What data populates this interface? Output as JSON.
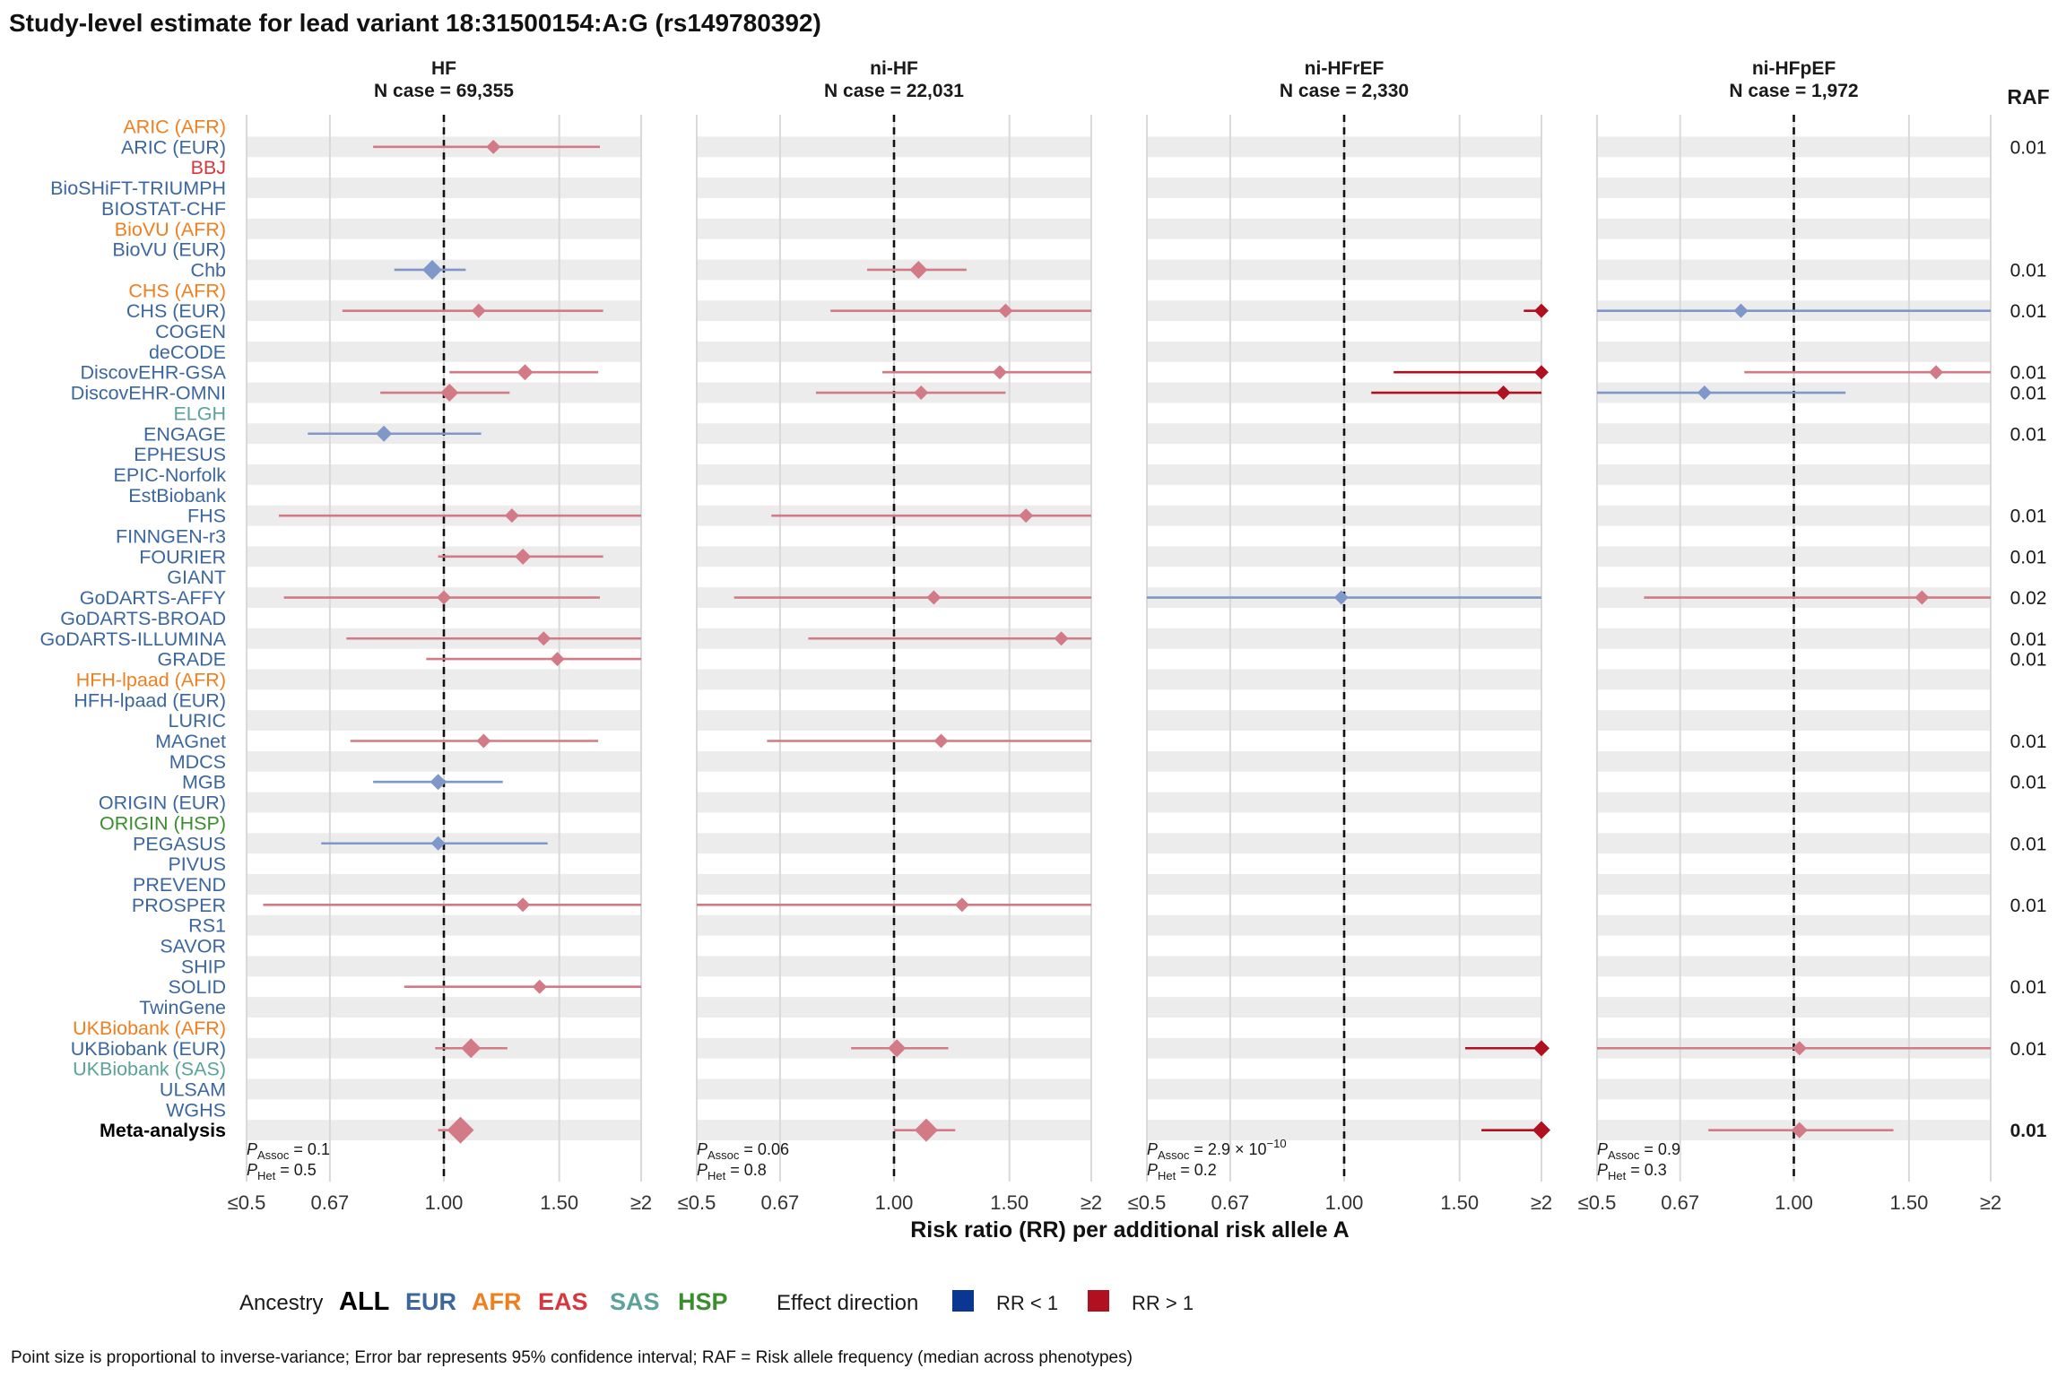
{
  "chart_data": {
    "type": "forest",
    "title": "Study-level estimate for lead variant 18:31500154:A:G (rs149780392)",
    "xlabel": "Risk ratio (RR) per additional risk allele A",
    "x_scale": "log",
    "x_ticks": [
      "≤0.5",
      "0.67",
      "1.00",
      "1.50",
      "≥2"
    ],
    "x_tick_values": [
      0.5,
      0.67,
      1.0,
      1.5,
      2.0
    ],
    "reference_line": 1.0,
    "raf_header": "RAF",
    "studies": [
      {
        "name": "ARIC (AFR)",
        "ancestry": "AFR"
      },
      {
        "name": "ARIC (EUR)",
        "ancestry": "EUR",
        "raf": "0.01"
      },
      {
        "name": "BBJ",
        "ancestry": "EAS"
      },
      {
        "name": "BioSHiFT-TRIUMPH",
        "ancestry": "EUR"
      },
      {
        "name": "BIOSTAT-CHF",
        "ancestry": "EUR"
      },
      {
        "name": "BioVU (AFR)",
        "ancestry": "AFR"
      },
      {
        "name": "BioVU (EUR)",
        "ancestry": "EUR"
      },
      {
        "name": "Chb",
        "ancestry": "EUR",
        "raf": "0.01"
      },
      {
        "name": "CHS (AFR)",
        "ancestry": "AFR"
      },
      {
        "name": "CHS (EUR)",
        "ancestry": "EUR",
        "raf": "0.01"
      },
      {
        "name": "COGEN",
        "ancestry": "EUR"
      },
      {
        "name": "deCODE",
        "ancestry": "EUR"
      },
      {
        "name": "DiscovEHR-GSA",
        "ancestry": "EUR",
        "raf": "0.01"
      },
      {
        "name": "DiscovEHR-OMNI",
        "ancestry": "EUR",
        "raf": "0.01"
      },
      {
        "name": "ELGH",
        "ancestry": "SAS"
      },
      {
        "name": "ENGAGE",
        "ancestry": "EUR",
        "raf": "0.01"
      },
      {
        "name": "EPHESUS",
        "ancestry": "EUR"
      },
      {
        "name": "EPIC-Norfolk",
        "ancestry": "EUR"
      },
      {
        "name": "EstBiobank",
        "ancestry": "EUR"
      },
      {
        "name": "FHS",
        "ancestry": "EUR",
        "raf": "0.01"
      },
      {
        "name": "FINNGEN-r3",
        "ancestry": "EUR"
      },
      {
        "name": "FOURIER",
        "ancestry": "EUR",
        "raf": "0.01"
      },
      {
        "name": "GIANT",
        "ancestry": "EUR"
      },
      {
        "name": "GoDARTS-AFFY",
        "ancestry": "EUR",
        "raf": "0.02"
      },
      {
        "name": "GoDARTS-BROAD",
        "ancestry": "EUR"
      },
      {
        "name": "GoDARTS-ILLUMINA",
        "ancestry": "EUR",
        "raf": "0.01"
      },
      {
        "name": "GRADE",
        "ancestry": "EUR",
        "raf": "0.01"
      },
      {
        "name": "HFH-lpaad (AFR)",
        "ancestry": "AFR"
      },
      {
        "name": "HFH-lpaad (EUR)",
        "ancestry": "EUR"
      },
      {
        "name": "LURIC",
        "ancestry": "EUR"
      },
      {
        "name": "MAGnet",
        "ancestry": "EUR",
        "raf": "0.01"
      },
      {
        "name": "MDCS",
        "ancestry": "EUR"
      },
      {
        "name": "MGB",
        "ancestry": "EUR",
        "raf": "0.01"
      },
      {
        "name": "ORIGIN (EUR)",
        "ancestry": "EUR"
      },
      {
        "name": "ORIGIN (HSP)",
        "ancestry": "HSP"
      },
      {
        "name": "PEGASUS",
        "ancestry": "EUR",
        "raf": "0.01"
      },
      {
        "name": "PIVUS",
        "ancestry": "EUR"
      },
      {
        "name": "PREVEND",
        "ancestry": "EUR"
      },
      {
        "name": "PROSPER",
        "ancestry": "EUR",
        "raf": "0.01"
      },
      {
        "name": "RS1",
        "ancestry": "EUR"
      },
      {
        "name": "SAVOR",
        "ancestry": "EUR"
      },
      {
        "name": "SHIP",
        "ancestry": "EUR"
      },
      {
        "name": "SOLID",
        "ancestry": "EUR",
        "raf": "0.01"
      },
      {
        "name": "TwinGene",
        "ancestry": "EUR"
      },
      {
        "name": "UKBiobank (AFR)",
        "ancestry": "AFR"
      },
      {
        "name": "UKBiobank (EUR)",
        "ancestry": "EUR",
        "raf": "0.01"
      },
      {
        "name": "UKBiobank (SAS)",
        "ancestry": "SAS"
      },
      {
        "name": "ULSAM",
        "ancestry": "EUR"
      },
      {
        "name": "WGHS",
        "ancestry": "EUR"
      },
      {
        "name": "Meta-analysis",
        "ancestry": "ALL",
        "raf": "0.01",
        "bold": true
      }
    ],
    "panels": [
      {
        "title": "HF",
        "n_case": "N case = 69,355",
        "p_assoc": "0.1",
        "p_het": "0.5",
        "estimates": [
          {
            "study": "ARIC (EUR)",
            "rr": 1.19,
            "lo": 0.78,
            "hi": 1.73,
            "size": 8
          },
          {
            "study": "Chb",
            "rr": 0.96,
            "lo": 0.84,
            "hi": 1.08,
            "size": 11
          },
          {
            "study": "CHS (EUR)",
            "rr": 1.13,
            "lo": 0.7,
            "hi": 1.75,
            "size": 8
          },
          {
            "study": "DiscovEHR-GSA",
            "rr": 1.33,
            "lo": 1.02,
            "hi": 1.72,
            "size": 9
          },
          {
            "study": "DiscovEHR-OMNI",
            "rr": 1.02,
            "lo": 0.8,
            "hi": 1.26,
            "size": 10
          },
          {
            "study": "ENGAGE",
            "rr": 0.81,
            "lo": 0.62,
            "hi": 1.14,
            "size": 9
          },
          {
            "study": "FHS",
            "rr": 1.27,
            "lo": 0.56,
            "hi": 2.0,
            "hi_clip": true,
            "size": 8
          },
          {
            "study": "FOURIER",
            "rr": 1.32,
            "lo": 0.98,
            "hi": 1.75,
            "size": 9
          },
          {
            "study": "GoDARTS-AFFY",
            "rr": 1.0,
            "lo": 0.57,
            "hi": 1.73,
            "size": 8
          },
          {
            "study": "GoDARTS-ILLUMINA",
            "rr": 1.42,
            "lo": 0.71,
            "hi": 2.0,
            "hi_clip": true,
            "size": 8
          },
          {
            "study": "GRADE",
            "rr": 1.49,
            "lo": 0.94,
            "hi": 2.0,
            "hi_clip": true,
            "size": 8
          },
          {
            "study": "MAGnet",
            "rr": 1.15,
            "lo": 0.72,
            "hi": 1.72,
            "size": 8
          },
          {
            "study": "MGB",
            "rr": 0.98,
            "lo": 0.78,
            "hi": 1.23,
            "size": 9
          },
          {
            "study": "PEGASUS",
            "rr": 0.98,
            "lo": 0.65,
            "hi": 1.44,
            "size": 8
          },
          {
            "study": "PROSPER",
            "rr": 1.32,
            "lo": 0.53,
            "hi": 2.0,
            "hi_clip": true,
            "size": 8
          },
          {
            "study": "SOLID",
            "rr": 1.4,
            "lo": 0.87,
            "hi": 2.0,
            "hi_clip": true,
            "size": 8
          },
          {
            "study": "UKBiobank (EUR)",
            "rr": 1.1,
            "lo": 0.97,
            "hi": 1.25,
            "size": 11
          },
          {
            "study": "Meta-analysis",
            "rr": 1.06,
            "lo": 0.98,
            "hi": 1.1,
            "size": 15
          }
        ]
      },
      {
        "title": "ni-HF",
        "n_case": "N case = 22,031",
        "p_assoc": "0.06",
        "p_het": "0.8",
        "estimates": [
          {
            "study": "Chb",
            "rr": 1.09,
            "lo": 0.91,
            "hi": 1.29,
            "size": 10
          },
          {
            "study": "CHS (EUR)",
            "rr": 1.48,
            "lo": 0.8,
            "hi": 2.0,
            "hi_clip": true,
            "size": 8
          },
          {
            "study": "DiscovEHR-GSA",
            "rr": 1.45,
            "lo": 0.96,
            "hi": 2.0,
            "hi_clip": true,
            "size": 8
          },
          {
            "study": "DiscovEHR-OMNI",
            "rr": 1.1,
            "lo": 0.76,
            "hi": 1.48,
            "size": 8
          },
          {
            "study": "FHS",
            "rr": 1.59,
            "lo": 0.65,
            "hi": 2.0,
            "hi_clip": true,
            "size": 8
          },
          {
            "study": "GoDARTS-AFFY",
            "rr": 1.15,
            "lo": 0.57,
            "hi": 2.0,
            "hi_clip": true,
            "size": 8
          },
          {
            "study": "GoDARTS-ILLUMINA",
            "rr": 1.8,
            "lo": 0.74,
            "hi": 2.0,
            "hi_clip": true,
            "size": 8
          },
          {
            "study": "MAGnet",
            "rr": 1.18,
            "lo": 0.64,
            "hi": 2.0,
            "hi_clip": true,
            "size": 8
          },
          {
            "study": "PROSPER",
            "rr": 1.27,
            "lo": 0.5,
            "lo_clip": true,
            "hi": 2.0,
            "hi_clip": true,
            "size": 8
          },
          {
            "study": "UKBiobank (EUR)",
            "rr": 1.01,
            "lo": 0.86,
            "hi": 1.21,
            "size": 10
          },
          {
            "study": "Meta-analysis",
            "rr": 1.12,
            "lo": 1.0,
            "hi": 1.24,
            "size": 13
          }
        ]
      },
      {
        "title": "ni-HFrEF",
        "n_case": "N case = 2,330",
        "p_assoc_mantissa": "2.9",
        "p_assoc_exp": "−10",
        "p_het": "0.2",
        "estimates": [
          {
            "study": "CHS (EUR)",
            "rr": 2.0,
            "rr_clip": true,
            "lo": 1.88,
            "hi": 2.0,
            "size": 8,
            "strong": true
          },
          {
            "study": "DiscovEHR-GSA",
            "rr": 2.0,
            "rr_clip": true,
            "lo": 1.19,
            "hi": 2.0,
            "size": 8,
            "strong": true
          },
          {
            "study": "DiscovEHR-OMNI",
            "rr": 1.75,
            "lo": 1.1,
            "hi": 2.0,
            "size": 8,
            "strong": true
          },
          {
            "study": "GoDARTS-AFFY",
            "rr": 0.99,
            "lo": 0.5,
            "lo_clip": true,
            "hi": 2.0,
            "hi_clip": true,
            "size": 8
          },
          {
            "study": "UKBiobank (EUR)",
            "rr": 2.0,
            "rr_clip": true,
            "lo": 1.53,
            "hi": 2.0,
            "size": 9,
            "strong": true
          },
          {
            "study": "Meta-analysis",
            "rr": 2.0,
            "rr_clip": true,
            "lo": 1.62,
            "hi": 2.0,
            "size": 10,
            "strong": true
          }
        ]
      },
      {
        "title": "ni-HFpEF",
        "n_case": "N case = 1,972",
        "p_assoc": "0.9",
        "p_het": "0.3",
        "estimates": [
          {
            "study": "CHS (EUR)",
            "rr": 0.83,
            "lo": 0.5,
            "lo_clip": true,
            "hi": 2.0,
            "hi_clip": true,
            "size": 8
          },
          {
            "study": "DiscovEHR-GSA",
            "rr": 1.65,
            "lo": 0.84,
            "hi": 2.0,
            "hi_clip": true,
            "size": 8
          },
          {
            "study": "DiscovEHR-OMNI",
            "rr": 0.73,
            "lo": 0.5,
            "lo_clip": true,
            "hi": 1.2,
            "size": 8
          },
          {
            "study": "GoDARTS-AFFY",
            "rr": 1.57,
            "lo": 0.59,
            "hi": 2.0,
            "hi_clip": true,
            "size": 8
          },
          {
            "study": "UKBiobank (EUR)",
            "rr": 1.02,
            "lo": 0.5,
            "lo_clip": true,
            "hi": 2.0,
            "hi_clip": true,
            "size": 8
          },
          {
            "study": "Meta-analysis",
            "rr": 1.02,
            "lo": 0.74,
            "hi": 1.42,
            "size": 9
          }
        ]
      }
    ],
    "legend": {
      "ancestry_title": "Ancestry",
      "ancestry": [
        {
          "label": "ALL",
          "color": "#000000"
        },
        {
          "label": "EUR",
          "color": "#3b679e"
        },
        {
          "label": "AFR",
          "color": "#f07f1f"
        },
        {
          "label": "EAS",
          "color": "#d6383d"
        },
        {
          "label": "SAS",
          "color": "#5aa39b"
        },
        {
          "label": "HSP",
          "color": "#3b8e2e"
        }
      ],
      "effect_title": "Effect direction",
      "effect": [
        {
          "label": "RR < 1",
          "color": "#0b3691"
        },
        {
          "label": "RR > 1",
          "color": "#b0101f"
        }
      ]
    },
    "footnote": "Point size is proportional to inverse-variance; Error bar represents 95% confidence interval; RAF = Risk allele frequency (median across phenotypes)",
    "colors": {
      "rr_less_1": "#7f97c9",
      "rr_greater_1": "#d27b86",
      "rr_greater_1_strong": "#b0101f",
      "stripe": "#ececec",
      "grid": "#d9d9d9"
    }
  }
}
